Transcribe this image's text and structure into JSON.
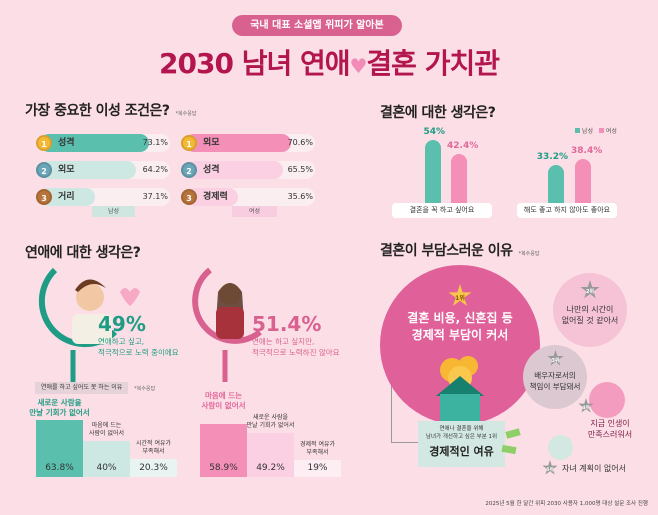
{
  "header": {
    "badge": "국내 대표 소셜앱 위피가 알아본",
    "title_left": "2030 남녀 연애",
    "title_right": "결혼 가치관"
  },
  "section1": {
    "title": "가장 중요한 이성 조건은?",
    "note": "*복수응답",
    "male": {
      "legend": "남성",
      "items": [
        {
          "rank": "1",
          "label": "성격",
          "value": "73.1%"
        },
        {
          "rank": "2",
          "label": "외모",
          "value": "64.2%"
        },
        {
          "rank": "3",
          "label": "거리",
          "value": "37.1%"
        }
      ]
    },
    "female": {
      "legend": "여성",
      "items": [
        {
          "rank": "1",
          "label": "외모",
          "value": "70.6%"
        },
        {
          "rank": "2",
          "label": "성격",
          "value": "65.5%"
        },
        {
          "rank": "3",
          "label": "경제력",
          "value": "35.6%"
        }
      ]
    }
  },
  "section2": {
    "title": "결혼에 대한 생각은?",
    "legend": [
      "남성",
      "여성"
    ],
    "groups": [
      {
        "label": "결혼을 꼭 하고 싶어요",
        "male": "54%",
        "female": "42.4%"
      },
      {
        "label": "해도 좋고 하지 않아도 좋아요",
        "male": "33.2%",
        "female": "38.4%"
      }
    ]
  },
  "section3": {
    "title": "연애에 대한 생각은?",
    "male": {
      "pct": "49%",
      "line1": "연애하고 싶고,",
      "line2": "적극적으로 노력 중이에요"
    },
    "female": {
      "pct": "51.4%",
      "line1": "연애는 하고 싶지만,",
      "line2": "적극적으로 노력하진 않아요"
    },
    "reasons_title": "연애를 하고 싶어도 못 하는 이유",
    "note": "*복수응답",
    "male_reasons": [
      {
        "l1": "새로운 사람을",
        "l2": "만날 기회가 없어서",
        "value": "63.8%"
      },
      {
        "l1": "마음에 드는",
        "l2": "사람이 없어서",
        "value": "40%"
      },
      {
        "l1": "시간적 여유가",
        "l2": "부족해서",
        "value": "20.3%"
      }
    ],
    "female_reasons": [
      {
        "l1": "마음에 드는",
        "l2": "사람이 없어서",
        "value": "58.9%"
      },
      {
        "l1": "새로운 사람을",
        "l2": "만날 기회가 없어서",
        "value": "49.2%"
      },
      {
        "l1": "경제적 여유가",
        "l2": "부족해서",
        "value": "19%"
      }
    ]
  },
  "section4": {
    "title": "결혼이 부담스러운 이유",
    "note": "*복수응답",
    "items": [
      {
        "rank": "1위",
        "l1": "결혼 비용, 신혼집 등",
        "l2": "경제적 부담이 커서"
      },
      {
        "rank": "2위",
        "l1": "나만의 시간이",
        "l2": "없어질 것 같아서"
      },
      {
        "rank": "3위",
        "l1": "배우자로서의",
        "l2": "책임이 부담돼서"
      },
      {
        "rank": "4위",
        "l1": "지금 인생이",
        "l2": "만족스러워서"
      },
      {
        "rank": "5위",
        "l1": "자녀 계획이 없어서",
        "l2": ""
      }
    ],
    "box": {
      "l1": "연애나 결혼을 위해",
      "l2": "남녀가 개선하고 싶은 부분 1위",
      "main": "경제적인 여유"
    }
  },
  "footer": "2025년 5월 한 달간 위피 2030 사용자 1,000명 대상 설문 조사 진행",
  "colors": {
    "teal": "#5bbfae",
    "pink": "#f48fb8",
    "title": "#b3154e",
    "bg": "#fcdfe6"
  },
  "chart_data": [
    {
      "type": "bar",
      "title": "가장 중요한 이성 조건은?",
      "series": [
        {
          "name": "남성",
          "categories": [
            "성격",
            "외모",
            "거리"
          ],
          "values": [
            73.1,
            64.2,
            37.1
          ]
        },
        {
          "name": "여성",
          "categories": [
            "외모",
            "성격",
            "경제력"
          ],
          "values": [
            70.6,
            65.5,
            35.6
          ]
        }
      ]
    },
    {
      "type": "bar",
      "title": "결혼에 대한 생각은?",
      "categories": [
        "결혼을 꼭 하고 싶어요",
        "해도 좋고 하지 않아도 좋아요"
      ],
      "series": [
        {
          "name": "남성",
          "values": [
            54,
            33.2
          ]
        },
        {
          "name": "여성",
          "values": [
            42.4,
            38.4
          ]
        }
      ],
      "legend": "top-right"
    },
    {
      "type": "bar",
      "title": "연애를 하고 싶어도 못 하는 이유",
      "series": [
        {
          "name": "남성",
          "categories": [
            "새로운 사람을 만날 기회가 없어서",
            "마음에 드는 사람이 없어서",
            "시간적 여유가 부족해서"
          ],
          "values": [
            63.8,
            40,
            20.3
          ]
        },
        {
          "name": "여성",
          "categories": [
            "마음에 드는 사람이 없어서",
            "새로운 사람을 만날 기회가 없어서",
            "경제적 여유가 부족해서"
          ],
          "values": [
            58.9,
            49.2,
            19
          ]
        }
      ]
    }
  ]
}
